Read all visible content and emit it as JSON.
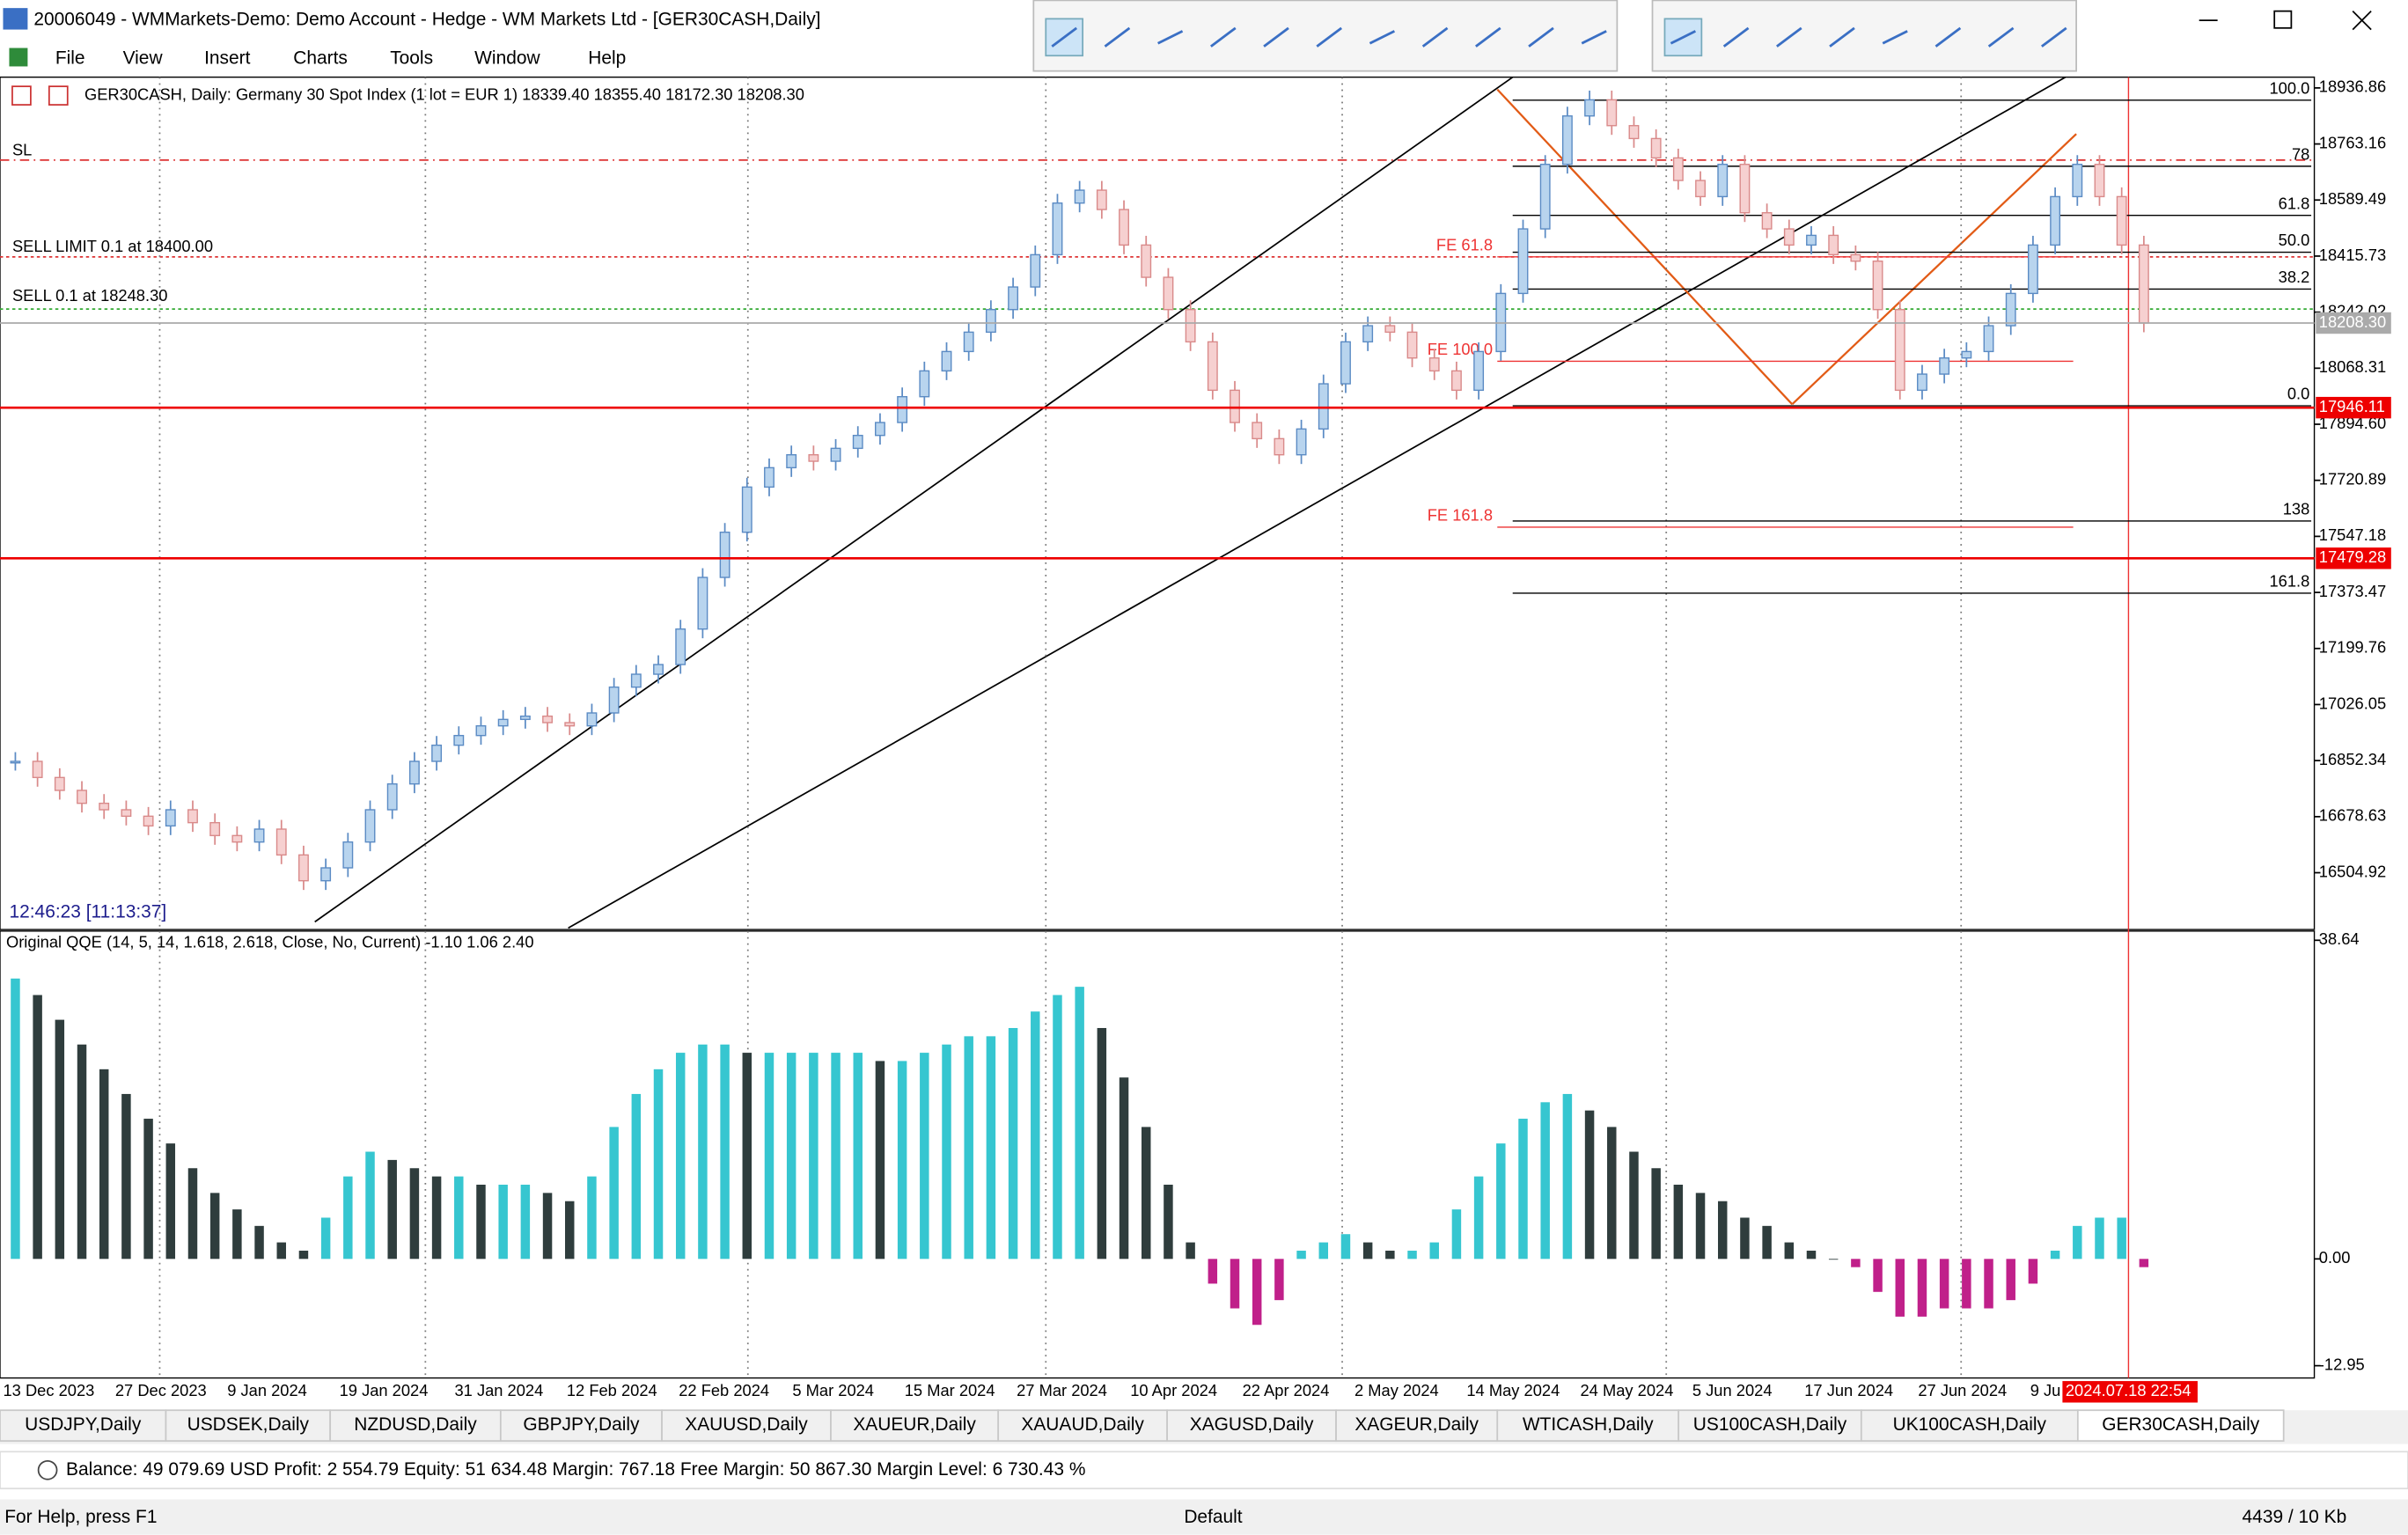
{
  "window_title": "20006049 - WMMarkets-Demo: Demo Account - Hedge - WM Markets Ltd - [GER30CASH,Daily]",
  "menu": [
    "File",
    "View",
    "Insert",
    "Charts",
    "Tools",
    "Window",
    "Help"
  ],
  "chart": {
    "header": "GER30CASH, Daily:  Germany 30 Spot Index (1 lot = EUR 1)  18339.40 18355.40 18172.30 18208.30",
    "ylim": [
      16333.6,
      18970.2
    ],
    "yticks": [
      18936.86,
      18763.16,
      18589.49,
      18415.73,
      18242.02,
      18068.31,
      {
        "value": 17894.6,
        "label": "17894.60"
      },
      17720.89,
      17547.18,
      17373.47,
      17199.76,
      17026.05,
      16852.34,
      16678.63,
      16504.92
    ],
    "bid": {
      "value": 18208.3,
      "label": "18208.30"
    },
    "levels": [
      17946.11,
      17479.28
    ],
    "orders": [
      "SL",
      "SELL LIMIT 0.1 at 18400.00",
      "SELL 0.1 at 18248.30"
    ],
    "fibo": [
      "100.0",
      "78",
      "61.8",
      "50.0",
      "38.2",
      "0.0",
      "138",
      "161.8"
    ],
    "expansion": [
      "FE 61.8",
      "FE 100.0",
      "FE 161.8"
    ],
    "clock": "12:46:23 [11:13:37]",
    "closes": [
      16850,
      16800,
      16760,
      16720,
      16700,
      16680,
      16650,
      16700,
      16660,
      16620,
      16600,
      16640,
      16560,
      16480,
      16520,
      16600,
      16700,
      16780,
      16850,
      16900,
      16930,
      16960,
      16980,
      16990,
      16970,
      16960,
      17000,
      17080,
      17120,
      17150,
      17260,
      17420,
      17560,
      17700,
      17760,
      17800,
      17780,
      17820,
      17860,
      17900,
      17980,
      18060,
      18120,
      18180,
      18250,
      18320,
      18420,
      18580,
      18620,
      18560,
      18450,
      18350,
      18250,
      18150,
      18000,
      17900,
      17850,
      17800,
      17880,
      18020,
      18150,
      18200,
      18180,
      18100,
      18060,
      18000,
      18120,
      18300,
      18500,
      18700,
      18850,
      18900,
      18820,
      18780,
      18720,
      18650,
      18600,
      18700,
      18550,
      18500,
      18450,
      18480,
      18420,
      18400,
      18250,
      18000,
      18050,
      18100,
      18120,
      18200,
      18300,
      18450,
      18600,
      18700,
      18600,
      18450,
      18208.3
    ],
    "dates": [
      "13 Dec 2023",
      "27 Dec 2023",
      "9 Jan 2024",
      "19 Jan 2024",
      "31 Jan 2024",
      "12 Feb 2024",
      "22 Feb 2024",
      "5 Mar 2024",
      "15 Mar 2024",
      "27 Mar 2024",
      "10 Apr 2024",
      "22 Apr 2024",
      "2 May 2024",
      "14 May 2024",
      "24 May 2024",
      "5 Jun 2024",
      "17 Jun 2024",
      "27 Jun 2024",
      "9 Ju"
    ],
    "cursor_date": "2024.07.18 22:54"
  },
  "indicator": {
    "header": "Original QQE (14, 5, 14, 1.618, 2.618, Close, No, Current) -1.10 1.06 2.40",
    "ylim": [
      -12.95,
      38.64
    ],
    "yticks": [
      38.64,
      {
        "value": 0,
        "label": "0.00"
      },
      -12.95
    ],
    "values": [
      34,
      32,
      29,
      26,
      23,
      20,
      17,
      14,
      11,
      8,
      6,
      4,
      2,
      1,
      5,
      10,
      13,
      12,
      11,
      10,
      10,
      9,
      9,
      9,
      8,
      7,
      10,
      16,
      20,
      23,
      25,
      26,
      26,
      25,
      25,
      25,
      25,
      25,
      25,
      24,
      24,
      25,
      26,
      27,
      27,
      28,
      30,
      32,
      33,
      28,
      22,
      16,
      9,
      2,
      -3,
      -6,
      -8,
      -5,
      1,
      2,
      3,
      2,
      1,
      1,
      2,
      6,
      10,
      14,
      17,
      19,
      20,
      18,
      16,
      13,
      11,
      9,
      8,
      7,
      5,
      4,
      2,
      1,
      0,
      -1,
      -4,
      -7,
      -7,
      -6,
      -6,
      -6,
      -5,
      -3,
      1,
      4,
      5,
      5,
      -1
    ]
  },
  "tabs": [
    "USDJPY,Daily",
    "USDSEK,Daily",
    "NZDUSD,Daily",
    "GBPJPY,Daily",
    "XAUUSD,Daily",
    "XAUEUR,Daily",
    "XAUAUD,Daily",
    "XAGUSD,Daily",
    "XAGEUR,Daily",
    "WTICASH,Daily",
    "US100CASH,Daily",
    "UK100CASH,Daily",
    "GER30CASH,Daily"
  ],
  "account": "Balance: 49 079.69 USD  Profit: 2 554.79  Equity: 51 634.48  Margin: 767.18  Free Margin: 50 867.30  Margin Level: 6 730.43 %",
  "status": [
    "For Help, press F1",
    "Default",
    "4439 / 10 Kb"
  ]
}
